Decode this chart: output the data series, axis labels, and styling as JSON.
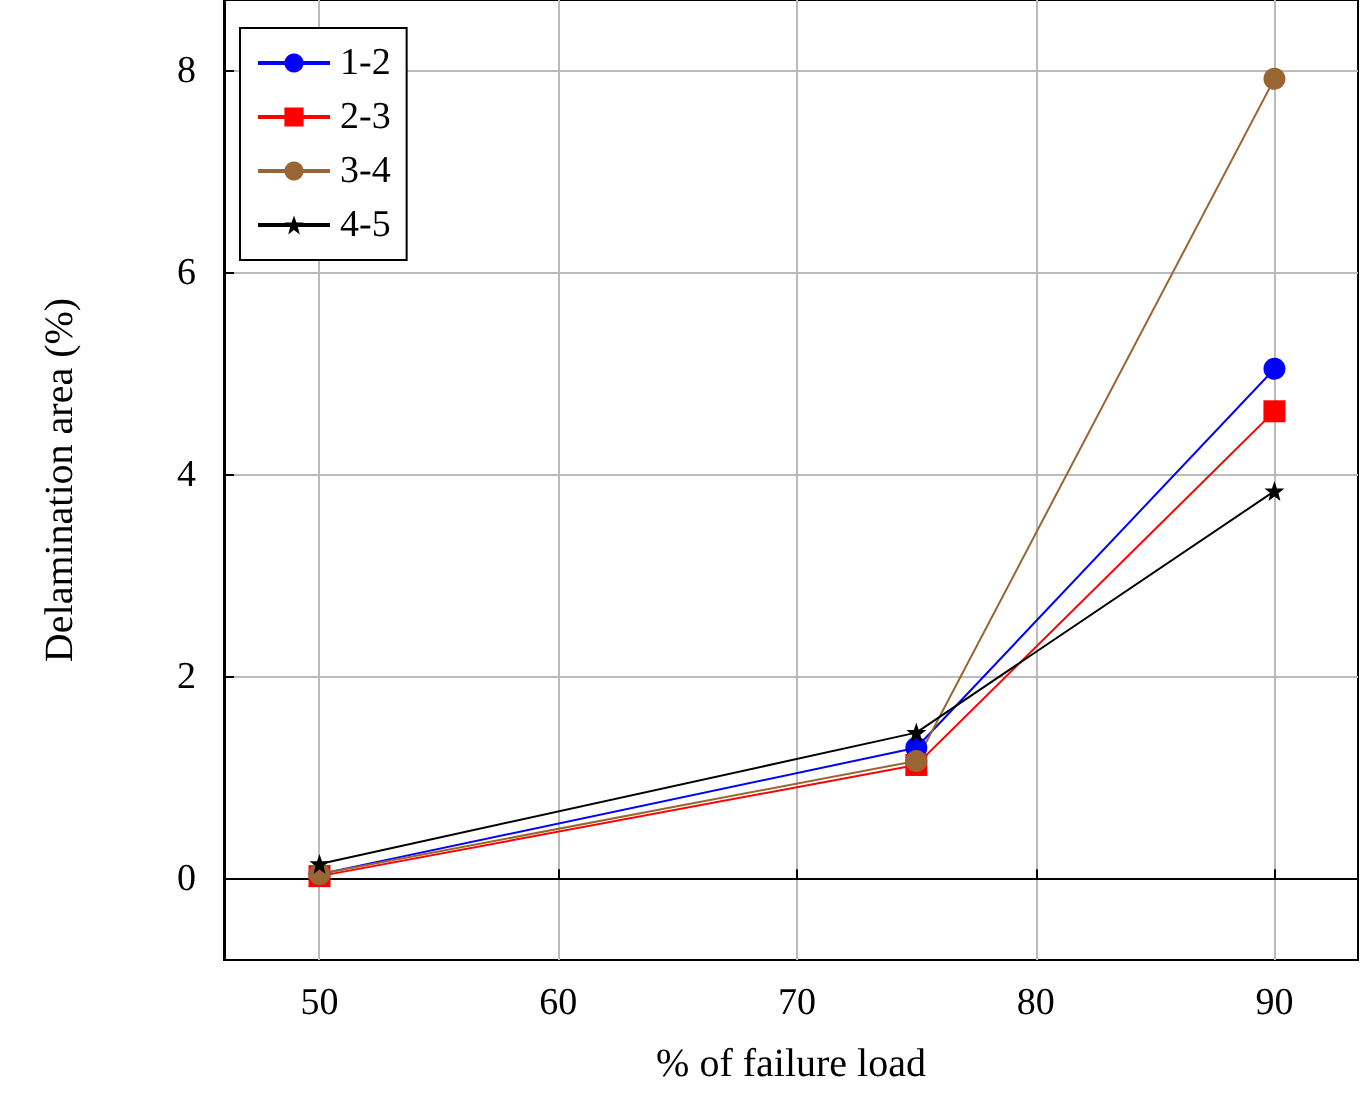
{
  "chart_data": {
    "type": "line",
    "xlabel": "% of failure load",
    "ylabel": "Delamination area (%)",
    "x": [
      50,
      75,
      90
    ],
    "series": [
      {
        "name": "1-2",
        "color": "#0000ff",
        "marker": "circle",
        "values": [
          0.05,
          1.3,
          5.05
        ]
      },
      {
        "name": "2-3",
        "color": "#ff0000",
        "marker": "square",
        "values": [
          0.03,
          1.13,
          4.63
        ]
      },
      {
        "name": "3-4",
        "color": "#996633",
        "marker": "circle",
        "values": [
          0.05,
          1.17,
          7.92
        ]
      },
      {
        "name": "4-5",
        "color": "#000000",
        "marker": "star",
        "values": [
          0.15,
          1.45,
          3.84
        ]
      }
    ],
    "xlim": [
      46,
      93.5
    ],
    "ylim": [
      -0.8,
      8.7
    ],
    "xticks": [
      50,
      60,
      70,
      80,
      90
    ],
    "yticks": [
      0,
      2,
      4,
      6,
      8
    ],
    "grid": true,
    "legend": "top left",
    "line_style": "solid"
  }
}
